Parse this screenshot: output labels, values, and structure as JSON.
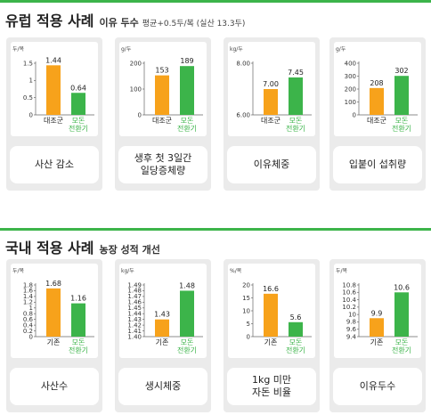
{
  "sections": [
    {
      "title": "유럽 적용 사례",
      "subtitle": "이유 두수",
      "note": "평균+0.5두/복 (실산 13.3두)",
      "charts": [
        {
          "type": "bar",
          "unit": "두/복",
          "ylim": [
            0,
            1.5
          ],
          "ticks": [
            "0",
            "0.5",
            "1",
            "1.5"
          ],
          "tick_values": [
            0,
            0.5,
            1,
            1.5
          ],
          "categories": [
            "대조군",
            "모돈\n전환기"
          ],
          "values": [
            1.44,
            0.64
          ],
          "value_labels": [
            "1.44",
            "0.64"
          ],
          "caption": "사산 감소"
        },
        {
          "type": "bar",
          "unit": "g/두",
          "ylim": [
            0,
            200
          ],
          "ticks": [
            "0",
            "100",
            "200"
          ],
          "tick_values": [
            0,
            100,
            200
          ],
          "categories": [
            "대조군",
            "모돈\n전환기"
          ],
          "values": [
            153,
            189
          ],
          "value_labels": [
            "153",
            "189"
          ],
          "caption": "생후 첫 3일간\n일당증체량"
        },
        {
          "type": "bar",
          "unit": "kg/두",
          "ylim": [
            6,
            8
          ],
          "ticks": [
            "6.00",
            "8.00"
          ],
          "tick_values": [
            6,
            8
          ],
          "categories": [
            "대조군",
            "모돈\n전환기"
          ],
          "values": [
            7.0,
            7.45
          ],
          "value_labels": [
            "7.00",
            "7.45"
          ],
          "caption": "이유체중"
        },
        {
          "type": "bar",
          "unit": "g/두",
          "ylim": [
            0,
            400
          ],
          "ticks": [
            "0",
            "100",
            "200",
            "300",
            "400"
          ],
          "tick_values": [
            0,
            100,
            200,
            300,
            400
          ],
          "categories": [
            "대조군",
            "모돈\n전환기"
          ],
          "values": [
            208,
            302
          ],
          "value_labels": [
            "208",
            "302"
          ],
          "caption": "입붙이 섭취량"
        }
      ]
    },
    {
      "title": "국내 적용 사례",
      "subtitle": "농장 성적 개선",
      "note": "",
      "charts": [
        {
          "type": "bar",
          "unit": "두/복",
          "ylim": [
            0,
            1.8
          ],
          "ticks": [
            "0",
            "0.2",
            "0.4",
            "0.6",
            "0.8",
            "1",
            "1.2",
            "1.4",
            "1.6",
            "1.8"
          ],
          "tick_values": [
            0,
            0.2,
            0.4,
            0.6,
            0.8,
            1,
            1.2,
            1.4,
            1.6,
            1.8
          ],
          "categories": [
            "기존",
            "모돈\n전환기"
          ],
          "values": [
            1.68,
            1.16
          ],
          "value_labels": [
            "1.68",
            "1.16"
          ],
          "caption": "사산수"
        },
        {
          "type": "bar",
          "unit": "kg/두",
          "ylim": [
            1.4,
            1.49
          ],
          "ticks": [
            "1.40",
            "1.41",
            "1.42",
            "1.43",
            "1.44",
            "1.45",
            "1.46",
            "1.47",
            "1.48",
            "1.49"
          ],
          "tick_values": [
            1.4,
            1.41,
            1.42,
            1.43,
            1.44,
            1.45,
            1.46,
            1.47,
            1.48,
            1.49
          ],
          "categories": [
            "기존",
            "모돈\n전환기"
          ],
          "values": [
            1.43,
            1.48
          ],
          "value_labels": [
            "1.43",
            "1.48"
          ],
          "caption": "생시체중"
        },
        {
          "type": "bar",
          "unit": "%/복",
          "ylim": [
            0,
            20
          ],
          "ticks": [
            "0",
            "5",
            "10",
            "15",
            "20"
          ],
          "tick_values": [
            0,
            5,
            10,
            15,
            20
          ],
          "categories": [
            "기존",
            "모돈\n전환기"
          ],
          "values": [
            16.6,
            5.6
          ],
          "value_labels": [
            "16.6",
            "5.6"
          ],
          "caption": "1kg 미만\n자돈 비율"
        },
        {
          "type": "bar",
          "unit": "두/복",
          "ylim": [
            9.4,
            10.8
          ],
          "ticks": [
            "9.4",
            "9.6",
            "9.8",
            "10",
            "10.2",
            "10.4",
            "10.6",
            "10.8"
          ],
          "tick_values": [
            9.4,
            9.6,
            9.8,
            10,
            10.2,
            10.4,
            10.6,
            10.8
          ],
          "categories": [
            "기존",
            "모돈\n전환기"
          ],
          "values": [
            9.9,
            10.6
          ],
          "value_labels": [
            "9.9",
            "10.6"
          ],
          "caption": "이유두수"
        }
      ]
    }
  ],
  "colors": {
    "control": "#f7a21b",
    "treatment": "#3cb44a",
    "accent": "#3cb44a",
    "category_control": "#222222",
    "category_treatment": "#3cb44a"
  }
}
